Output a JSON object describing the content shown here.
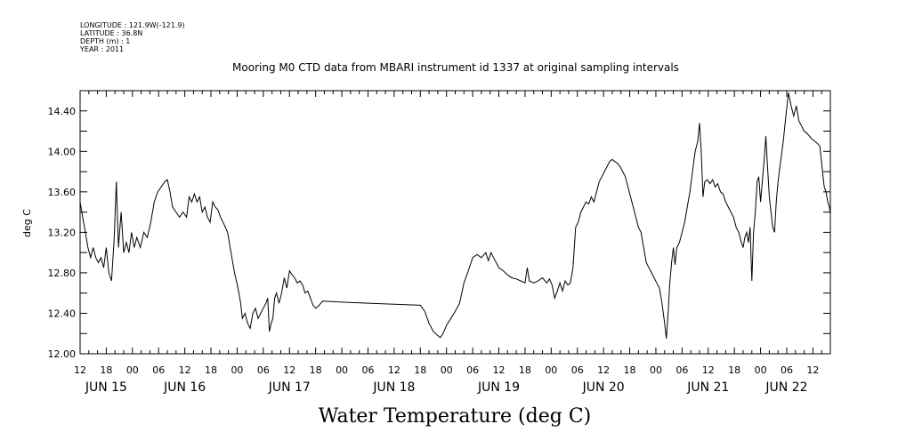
{
  "header": {
    "lines": [
      "LONGITUDE : 121.9W(-121.9)",
      "LATITUDE : 36.8N",
      "DEPTH (m) : 1",
      "YEAR : 2011"
    ]
  },
  "chart_data": {
    "type": "line",
    "title": "Mooring M0 CTD data from MBARI instrument id 1337 at original sampling intervals",
    "xlabel": "Water Temperature (deg C)",
    "ylabel": "deg C",
    "ylim": [
      12.0,
      14.6
    ],
    "yticks": [
      "12.00",
      "12.40",
      "12.80",
      "13.20",
      "13.60",
      "14.00",
      "14.40"
    ],
    "xlim": [
      0,
      172
    ],
    "xticks": [
      {
        "h": 0,
        "label": "12"
      },
      {
        "h": 6,
        "label": "18"
      },
      {
        "h": 12,
        "label": "00"
      },
      {
        "h": 18,
        "label": "06"
      },
      {
        "h": 24,
        "label": "12"
      },
      {
        "h": 30,
        "label": "18"
      },
      {
        "h": 36,
        "label": "00"
      },
      {
        "h": 42,
        "label": "06"
      },
      {
        "h": 48,
        "label": "12"
      },
      {
        "h": 54,
        "label": "18"
      },
      {
        "h": 60,
        "label": "00"
      },
      {
        "h": 66,
        "label": "06"
      },
      {
        "h": 72,
        "label": "12"
      },
      {
        "h": 78,
        "label": "18"
      },
      {
        "h": 84,
        "label": "00"
      },
      {
        "h": 90,
        "label": "06"
      },
      {
        "h": 96,
        "label": "12"
      },
      {
        "h": 102,
        "label": "18"
      },
      {
        "h": 108,
        "label": "00"
      },
      {
        "h": 114,
        "label": "06"
      },
      {
        "h": 120,
        "label": "12"
      },
      {
        "h": 126,
        "label": "18"
      },
      {
        "h": 132,
        "label": "00"
      },
      {
        "h": 138,
        "label": "06"
      },
      {
        "h": 144,
        "label": "12"
      },
      {
        "h": 150,
        "label": "18"
      },
      {
        "h": 156,
        "label": "00"
      },
      {
        "h": 162,
        "label": "06"
      },
      {
        "h": 168,
        "label": "12"
      }
    ],
    "day_labels": [
      {
        "h": 6,
        "label": "JUN 15"
      },
      {
        "h": 24,
        "label": "JUN 16"
      },
      {
        "h": 48,
        "label": "JUN 17"
      },
      {
        "h": 72,
        "label": "JUN 18"
      },
      {
        "h": 96,
        "label": "JUN 19"
      },
      {
        "h": 120,
        "label": "JUN 20"
      },
      {
        "h": 144,
        "label": "JUN 21"
      },
      {
        "h": 162,
        "label": "JUN 22"
      }
    ],
    "series": [
      {
        "points": [
          [
            0.0,
            13.5
          ],
          [
            0.6,
            13.35
          ],
          [
            1.2,
            13.2
          ],
          [
            1.8,
            13.05
          ],
          [
            2.4,
            12.95
          ],
          [
            3.0,
            13.05
          ],
          [
            3.6,
            12.95
          ],
          [
            4.2,
            12.9
          ],
          [
            4.8,
            12.95
          ],
          [
            5.4,
            12.85
          ],
          [
            6.0,
            13.05
          ],
          [
            6.6,
            12.8
          ],
          [
            7.2,
            12.72
          ],
          [
            7.8,
            13.12
          ],
          [
            8.3,
            13.7
          ],
          [
            8.8,
            13.05
          ],
          [
            9.4,
            13.4
          ],
          [
            10.0,
            13.0
          ],
          [
            10.6,
            13.1
          ],
          [
            11.2,
            13.0
          ],
          [
            11.8,
            13.2
          ],
          [
            12.4,
            13.05
          ],
          [
            13.0,
            13.15
          ],
          [
            13.8,
            13.05
          ],
          [
            14.6,
            13.2
          ],
          [
            15.4,
            13.15
          ],
          [
            16.2,
            13.3
          ],
          [
            17.0,
            13.5
          ],
          [
            17.8,
            13.6
          ],
          [
            18.6,
            13.65
          ],
          [
            19.4,
            13.7
          ],
          [
            20.0,
            13.72
          ],
          [
            20.6,
            13.6
          ],
          [
            21.2,
            13.45
          ],
          [
            22.0,
            13.4
          ],
          [
            22.8,
            13.35
          ],
          [
            23.6,
            13.4
          ],
          [
            24.4,
            13.35
          ],
          [
            25.0,
            13.55
          ],
          [
            25.6,
            13.5
          ],
          [
            26.2,
            13.58
          ],
          [
            26.8,
            13.5
          ],
          [
            27.4,
            13.55
          ],
          [
            28.0,
            13.4
          ],
          [
            28.6,
            13.45
          ],
          [
            29.2,
            13.35
          ],
          [
            29.8,
            13.3
          ],
          [
            30.4,
            13.5
          ],
          [
            31.0,
            13.45
          ],
          [
            31.6,
            13.42
          ],
          [
            32.2,
            13.35
          ],
          [
            33.0,
            13.28
          ],
          [
            33.8,
            13.2
          ],
          [
            34.6,
            13.0
          ],
          [
            35.4,
            12.8
          ],
          [
            36.2,
            12.65
          ],
          [
            36.8,
            12.5
          ],
          [
            37.2,
            12.35
          ],
          [
            37.8,
            12.4
          ],
          [
            38.4,
            12.3
          ],
          [
            39.0,
            12.25
          ],
          [
            39.6,
            12.4
          ],
          [
            40.2,
            12.45
          ],
          [
            40.8,
            12.35
          ],
          [
            41.4,
            12.4
          ],
          [
            42.0,
            12.45
          ],
          [
            42.6,
            12.5
          ],
          [
            43.0,
            12.55
          ],
          [
            43.4,
            12.22
          ],
          [
            43.8,
            12.3
          ],
          [
            44.2,
            12.35
          ],
          [
            44.6,
            12.55
          ],
          [
            45.0,
            12.6
          ],
          [
            45.6,
            12.5
          ],
          [
            46.2,
            12.6
          ],
          [
            46.8,
            12.75
          ],
          [
            47.4,
            12.65
          ],
          [
            48.0,
            12.82
          ],
          [
            48.6,
            12.78
          ],
          [
            49.2,
            12.75
          ],
          [
            49.8,
            12.7
          ],
          [
            50.4,
            12.72
          ],
          [
            51.0,
            12.68
          ],
          [
            51.6,
            12.6
          ],
          [
            52.2,
            12.62
          ],
          [
            52.8,
            12.55
          ],
          [
            53.4,
            12.48
          ],
          [
            54.0,
            12.45
          ],
          [
            54.6,
            12.47
          ],
          [
            55.2,
            12.5
          ],
          [
            55.6,
            12.52
          ],
          [
            60.0,
            12.51
          ],
          [
            66.0,
            12.5
          ],
          [
            72.0,
            12.49
          ],
          [
            78.0,
            12.48
          ],
          [
            79.0,
            12.42
          ],
          [
            80.0,
            12.3
          ],
          [
            81.0,
            12.22
          ],
          [
            82.0,
            12.18
          ],
          [
            82.6,
            12.16
          ],
          [
            83.2,
            12.2
          ],
          [
            84.0,
            12.28
          ],
          [
            85.0,
            12.35
          ],
          [
            86.0,
            12.42
          ],
          [
            87.0,
            12.5
          ],
          [
            88.0,
            12.7
          ],
          [
            89.0,
            12.82
          ],
          [
            90.0,
            12.95
          ],
          [
            91.0,
            12.98
          ],
          [
            92.0,
            12.95
          ],
          [
            93.0,
            13.0
          ],
          [
            93.6,
            12.92
          ],
          [
            94.2,
            13.0
          ],
          [
            94.8,
            12.95
          ],
          [
            95.4,
            12.9
          ],
          [
            96.0,
            12.85
          ],
          [
            97.0,
            12.82
          ],
          [
            98.0,
            12.78
          ],
          [
            99.0,
            12.75
          ],
          [
            100.0,
            12.74
          ],
          [
            101.0,
            12.72
          ],
          [
            102.0,
            12.7
          ],
          [
            102.5,
            12.85
          ],
          [
            103.0,
            12.72
          ],
          [
            104.0,
            12.7
          ],
          [
            105.0,
            12.72
          ],
          [
            106.0,
            12.75
          ],
          [
            107.0,
            12.7
          ],
          [
            107.6,
            12.74
          ],
          [
            108.2,
            12.68
          ],
          [
            108.8,
            12.55
          ],
          [
            109.4,
            12.62
          ],
          [
            110.0,
            12.7
          ],
          [
            110.6,
            12.62
          ],
          [
            111.2,
            12.72
          ],
          [
            111.8,
            12.68
          ],
          [
            112.4,
            12.7
          ],
          [
            113.0,
            12.85
          ],
          [
            113.6,
            13.25
          ],
          [
            114.2,
            13.3
          ],
          [
            114.8,
            13.4
          ],
          [
            115.4,
            13.45
          ],
          [
            116.0,
            13.5
          ],
          [
            116.6,
            13.48
          ],
          [
            117.2,
            13.55
          ],
          [
            117.8,
            13.5
          ],
          [
            118.4,
            13.6
          ],
          [
            119.0,
            13.7
          ],
          [
            119.6,
            13.75
          ],
          [
            120.2,
            13.8
          ],
          [
            120.8,
            13.85
          ],
          [
            121.4,
            13.9
          ],
          [
            122.0,
            13.92
          ],
          [
            122.6,
            13.9
          ],
          [
            123.2,
            13.88
          ],
          [
            123.8,
            13.85
          ],
          [
            124.4,
            13.8
          ],
          [
            125.0,
            13.75
          ],
          [
            125.6,
            13.65
          ],
          [
            126.2,
            13.55
          ],
          [
            126.8,
            13.45
          ],
          [
            127.4,
            13.35
          ],
          [
            128.0,
            13.25
          ],
          [
            128.6,
            13.2
          ],
          [
            129.2,
            13.05
          ],
          [
            129.8,
            12.9
          ],
          [
            130.4,
            12.85
          ],
          [
            131.0,
            12.8
          ],
          [
            131.6,
            12.75
          ],
          [
            132.2,
            12.7
          ],
          [
            132.8,
            12.65
          ],
          [
            133.4,
            12.5
          ],
          [
            134.0,
            12.3
          ],
          [
            134.4,
            12.15
          ],
          [
            134.8,
            12.4
          ],
          [
            135.2,
            12.7
          ],
          [
            135.6,
            12.9
          ],
          [
            136.0,
            13.05
          ],
          [
            136.4,
            12.88
          ],
          [
            136.8,
            13.05
          ],
          [
            137.4,
            13.1
          ],
          [
            138.0,
            13.2
          ],
          [
            138.6,
            13.3
          ],
          [
            139.2,
            13.45
          ],
          [
            139.8,
            13.6
          ],
          [
            140.4,
            13.8
          ],
          [
            141.0,
            14.0
          ],
          [
            141.6,
            14.1
          ],
          [
            142.0,
            14.28
          ],
          [
            142.4,
            14.0
          ],
          [
            142.8,
            13.55
          ],
          [
            143.2,
            13.7
          ],
          [
            143.8,
            13.72
          ],
          [
            144.4,
            13.68
          ],
          [
            145.0,
            13.72
          ],
          [
            145.6,
            13.65
          ],
          [
            146.2,
            13.68
          ],
          [
            146.8,
            13.6
          ],
          [
            147.4,
            13.58
          ],
          [
            148.0,
            13.5
          ],
          [
            148.6,
            13.45
          ],
          [
            149.2,
            13.4
          ],
          [
            149.8,
            13.35
          ],
          [
            150.4,
            13.25
          ],
          [
            151.0,
            13.2
          ],
          [
            151.6,
            13.1
          ],
          [
            152.0,
            13.05
          ],
          [
            152.4,
            13.15
          ],
          [
            152.8,
            13.2
          ],
          [
            153.2,
            13.1
          ],
          [
            153.6,
            13.25
          ],
          [
            154.0,
            12.72
          ],
          [
            154.4,
            13.2
          ],
          [
            154.8,
            13.4
          ],
          [
            155.2,
            13.7
          ],
          [
            155.6,
            13.75
          ],
          [
            156.0,
            13.5
          ],
          [
            156.4,
            13.7
          ],
          [
            156.8,
            13.9
          ],
          [
            157.2,
            14.15
          ],
          [
            157.6,
            13.85
          ],
          [
            158.0,
            13.55
          ],
          [
            158.4,
            13.4
          ],
          [
            158.8,
            13.25
          ],
          [
            159.2,
            13.2
          ],
          [
            159.6,
            13.5
          ],
          [
            160.0,
            13.7
          ],
          [
            160.6,
            13.9
          ],
          [
            161.2,
            14.1
          ],
          [
            161.8,
            14.35
          ],
          [
            162.4,
            14.58
          ],
          [
            163.0,
            14.45
          ],
          [
            163.6,
            14.35
          ],
          [
            164.2,
            14.45
          ],
          [
            164.8,
            14.3
          ],
          [
            165.4,
            14.25
          ],
          [
            166.0,
            14.2
          ],
          [
            166.6,
            14.18
          ],
          [
            167.2,
            14.15
          ],
          [
            167.8,
            14.12
          ],
          [
            168.4,
            14.1
          ],
          [
            169.0,
            14.08
          ],
          [
            169.6,
            14.05
          ],
          [
            170.2,
            13.8
          ],
          [
            170.6,
            13.65
          ],
          [
            171.0,
            13.6
          ],
          [
            171.4,
            13.5
          ],
          [
            171.8,
            13.45
          ],
          [
            172.0,
            13.38
          ]
        ]
      }
    ]
  },
  "colors": {
    "line": "#000000",
    "background": "#ffffff"
  }
}
